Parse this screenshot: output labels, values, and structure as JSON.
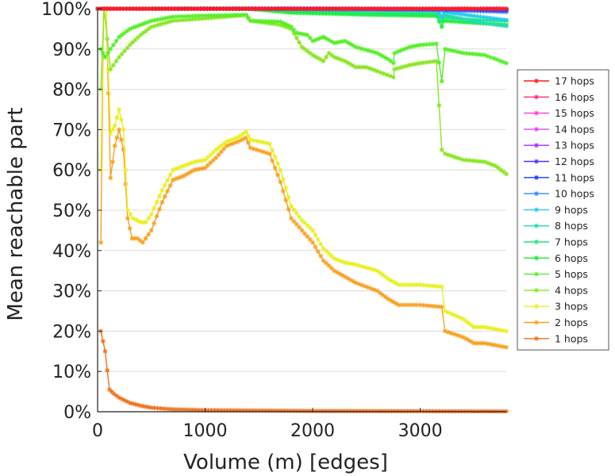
{
  "chart_data": {
    "type": "line",
    "xlabel": "Volume (m) [edges]",
    "ylabel": "Mean reachable part",
    "xlim": [
      0,
      3800
    ],
    "ylim": [
      0,
      100
    ],
    "xticks": [
      "0",
      "1000",
      "2000",
      "3000"
    ],
    "yticks": [
      "0%",
      "10%",
      "20%",
      "30%",
      "40%",
      "50%",
      "60%",
      "70%",
      "80%",
      "90%",
      "100%"
    ],
    "legend_position": "right",
    "series": [
      {
        "name": "17 hops",
        "color": "#ff1a1a",
        "points": [
          [
            0,
            100
          ],
          [
            3800,
            100
          ]
        ]
      },
      {
        "name": "16 hops",
        "color": "#ff2a7a",
        "points": [
          [
            0,
            100
          ],
          [
            3800,
            100
          ]
        ]
      },
      {
        "name": "15 hops",
        "color": "#ff3ad6",
        "points": [
          [
            0,
            100
          ],
          [
            3800,
            100
          ]
        ]
      },
      {
        "name": "14 hops",
        "color": "#e040ff",
        "points": [
          [
            0,
            100
          ],
          [
            3800,
            100
          ]
        ]
      },
      {
        "name": "13 hops",
        "color": "#9a30ff",
        "points": [
          [
            0,
            100
          ],
          [
            3800,
            100
          ]
        ]
      },
      {
        "name": "12 hops",
        "color": "#4a2cff",
        "points": [
          [
            0,
            100
          ],
          [
            1800,
            100
          ],
          [
            3800,
            99.8
          ]
        ]
      },
      {
        "name": "11 hops",
        "color": "#1a3aff",
        "points": [
          [
            0,
            100
          ],
          [
            1800,
            100
          ],
          [
            3200,
            99.9
          ],
          [
            3800,
            99.6
          ]
        ]
      },
      {
        "name": "10 hops",
        "color": "#2a8aff",
        "points": [
          [
            0,
            100
          ],
          [
            1800,
            100
          ],
          [
            3200,
            99.7
          ],
          [
            3800,
            99.2
          ]
        ]
      },
      {
        "name": "9 hops",
        "color": "#22ccee",
        "points": [
          [
            0,
            100
          ],
          [
            1800,
            100
          ],
          [
            3150,
            99.8
          ],
          [
            3200,
            98
          ],
          [
            3220,
            99.2
          ],
          [
            3500,
            98.2
          ],
          [
            3800,
            97.2
          ]
        ]
      },
      {
        "name": "8 hops",
        "color": "#22ddb0",
        "points": [
          [
            0,
            100
          ],
          [
            1800,
            100
          ],
          [
            3150,
            99.6
          ],
          [
            3200,
            97.8
          ],
          [
            3220,
            98.5
          ],
          [
            3500,
            96.8
          ],
          [
            3800,
            95.7
          ]
        ]
      },
      {
        "name": "7 hops",
        "color": "#1ae878",
        "points": [
          [
            0,
            100
          ],
          [
            1500,
            100
          ],
          [
            1800,
            99.6
          ],
          [
            2500,
            99
          ],
          [
            3150,
            98.8
          ],
          [
            3200,
            96.8
          ],
          [
            3220,
            97.8
          ],
          [
            3500,
            97.2
          ],
          [
            3800,
            97
          ]
        ]
      },
      {
        "name": "6 hops",
        "color": "#18ee30",
        "points": [
          [
            0,
            100
          ],
          [
            1400,
            100
          ],
          [
            1800,
            99
          ],
          [
            2500,
            98.5
          ],
          [
            3150,
            98.2
          ],
          [
            3200,
            95.5
          ],
          [
            3220,
            97
          ],
          [
            3500,
            96.5
          ],
          [
            3800,
            96
          ]
        ]
      },
      {
        "name": "5 hops",
        "color": "#55ee28",
        "points": [
          [
            30,
            90
          ],
          [
            70,
            88
          ],
          [
            120,
            90
          ],
          [
            200,
            93
          ],
          [
            300,
            95
          ],
          [
            400,
            96
          ],
          [
            500,
            97
          ],
          [
            700,
            98
          ],
          [
            1000,
            98.3
          ],
          [
            1380,
            98.5
          ],
          [
            1420,
            97
          ],
          [
            1700,
            96.8
          ],
          [
            1800,
            95.5
          ],
          [
            1850,
            94
          ],
          [
            1950,
            93.5
          ],
          [
            2000,
            92
          ],
          [
            2100,
            93
          ],
          [
            2200,
            91.5
          ],
          [
            2300,
            92
          ],
          [
            2400,
            90.5
          ],
          [
            2600,
            89
          ],
          [
            2700,
            87.5
          ],
          [
            2750,
            86.5
          ],
          [
            2760,
            89
          ],
          [
            2900,
            90.5
          ],
          [
            3000,
            91
          ],
          [
            3150,
            91.3
          ],
          [
            3200,
            82
          ],
          [
            3230,
            90
          ],
          [
            3400,
            89
          ],
          [
            3600,
            88.5
          ],
          [
            3800,
            86.5
          ]
        ]
      },
      {
        "name": "4 hops",
        "color": "#88e620",
        "points": [
          [
            30,
            80
          ],
          [
            60,
            100
          ],
          [
            120,
            85
          ],
          [
            200,
            88
          ],
          [
            300,
            91
          ],
          [
            400,
            93.5
          ],
          [
            500,
            95.5
          ],
          [
            700,
            97
          ],
          [
            1000,
            97.6
          ],
          [
            1380,
            98.4
          ],
          [
            1420,
            97
          ],
          [
            1700,
            96
          ],
          [
            1800,
            95
          ],
          [
            1900,
            90.5
          ],
          [
            2000,
            88.5
          ],
          [
            2100,
            87
          ],
          [
            2150,
            89
          ],
          [
            2200,
            88
          ],
          [
            2300,
            87
          ],
          [
            2400,
            85.5
          ],
          [
            2500,
            85.5
          ],
          [
            2600,
            84.5
          ],
          [
            2750,
            83
          ],
          [
            2760,
            85
          ],
          [
            2900,
            86
          ],
          [
            3000,
            86.5
          ],
          [
            3150,
            87
          ],
          [
            3200,
            65
          ],
          [
            3230,
            64
          ],
          [
            3400,
            62.5
          ],
          [
            3600,
            62
          ],
          [
            3700,
            61
          ],
          [
            3800,
            59
          ]
        ]
      },
      {
        "name": "3 hops",
        "color": "#e8f020",
        "points": [
          [
            30,
            60
          ],
          [
            55,
            100
          ],
          [
            80,
            100
          ],
          [
            120,
            69
          ],
          [
            160,
            71
          ],
          [
            200,
            75
          ],
          [
            240,
            70
          ],
          [
            280,
            50
          ],
          [
            330,
            48
          ],
          [
            400,
            47
          ],
          [
            450,
            47
          ],
          [
            500,
            49
          ],
          [
            600,
            55
          ],
          [
            700,
            60
          ],
          [
            800,
            61
          ],
          [
            900,
            62
          ],
          [
            1000,
            62.5
          ],
          [
            1100,
            65
          ],
          [
            1200,
            67
          ],
          [
            1300,
            68
          ],
          [
            1380,
            69.5
          ],
          [
            1420,
            67.5
          ],
          [
            1600,
            66.5
          ],
          [
            1700,
            60
          ],
          [
            1800,
            51
          ],
          [
            1900,
            47.5
          ],
          [
            2000,
            45
          ],
          [
            2100,
            40.5
          ],
          [
            2200,
            38
          ],
          [
            2300,
            37
          ],
          [
            2400,
            36.5
          ],
          [
            2600,
            35
          ],
          [
            2700,
            33
          ],
          [
            2800,
            31.5
          ],
          [
            3000,
            31.5
          ],
          [
            3200,
            31
          ],
          [
            3230,
            25
          ],
          [
            3400,
            23
          ],
          [
            3500,
            21
          ],
          [
            3600,
            21
          ],
          [
            3800,
            20
          ]
        ]
      },
      {
        "name": "2 hops",
        "color": "#f8a020",
        "points": [
          [
            30,
            42
          ],
          [
            55,
            100
          ],
          [
            80,
            100
          ],
          [
            120,
            58
          ],
          [
            160,
            66
          ],
          [
            200,
            70
          ],
          [
            240,
            65
          ],
          [
            280,
            48
          ],
          [
            320,
            43
          ],
          [
            370,
            43
          ],
          [
            420,
            42
          ],
          [
            500,
            45
          ],
          [
            600,
            52
          ],
          [
            700,
            57.5
          ],
          [
            800,
            58.5
          ],
          [
            900,
            60
          ],
          [
            1000,
            60.5
          ],
          [
            1100,
            63
          ],
          [
            1200,
            66
          ],
          [
            1300,
            67
          ],
          [
            1380,
            68
          ],
          [
            1420,
            65.5
          ],
          [
            1600,
            64
          ],
          [
            1700,
            57
          ],
          [
            1800,
            48
          ],
          [
            1900,
            45
          ],
          [
            2000,
            42
          ],
          [
            2100,
            37.5
          ],
          [
            2200,
            35
          ],
          [
            2300,
            33.5
          ],
          [
            2400,
            32
          ],
          [
            2600,
            30
          ],
          [
            2700,
            28
          ],
          [
            2800,
            26.5
          ],
          [
            3000,
            26.5
          ],
          [
            3200,
            26
          ],
          [
            3230,
            20
          ],
          [
            3400,
            18.5
          ],
          [
            3500,
            17
          ],
          [
            3600,
            17
          ],
          [
            3800,
            16
          ]
        ]
      },
      {
        "name": "1 hops",
        "color": "#f07020",
        "points": [
          [
            30,
            20
          ],
          [
            70,
            15
          ],
          [
            110,
            5.5
          ],
          [
            150,
            4.5
          ],
          [
            200,
            3.5
          ],
          [
            300,
            2.2
          ],
          [
            400,
            1.5
          ],
          [
            500,
            1
          ],
          [
            700,
            0.6
          ],
          [
            1000,
            0.4
          ],
          [
            1500,
            0.3
          ],
          [
            2000,
            0.2
          ],
          [
            3000,
            0.15
          ],
          [
            3800,
            0.1
          ]
        ]
      }
    ]
  }
}
